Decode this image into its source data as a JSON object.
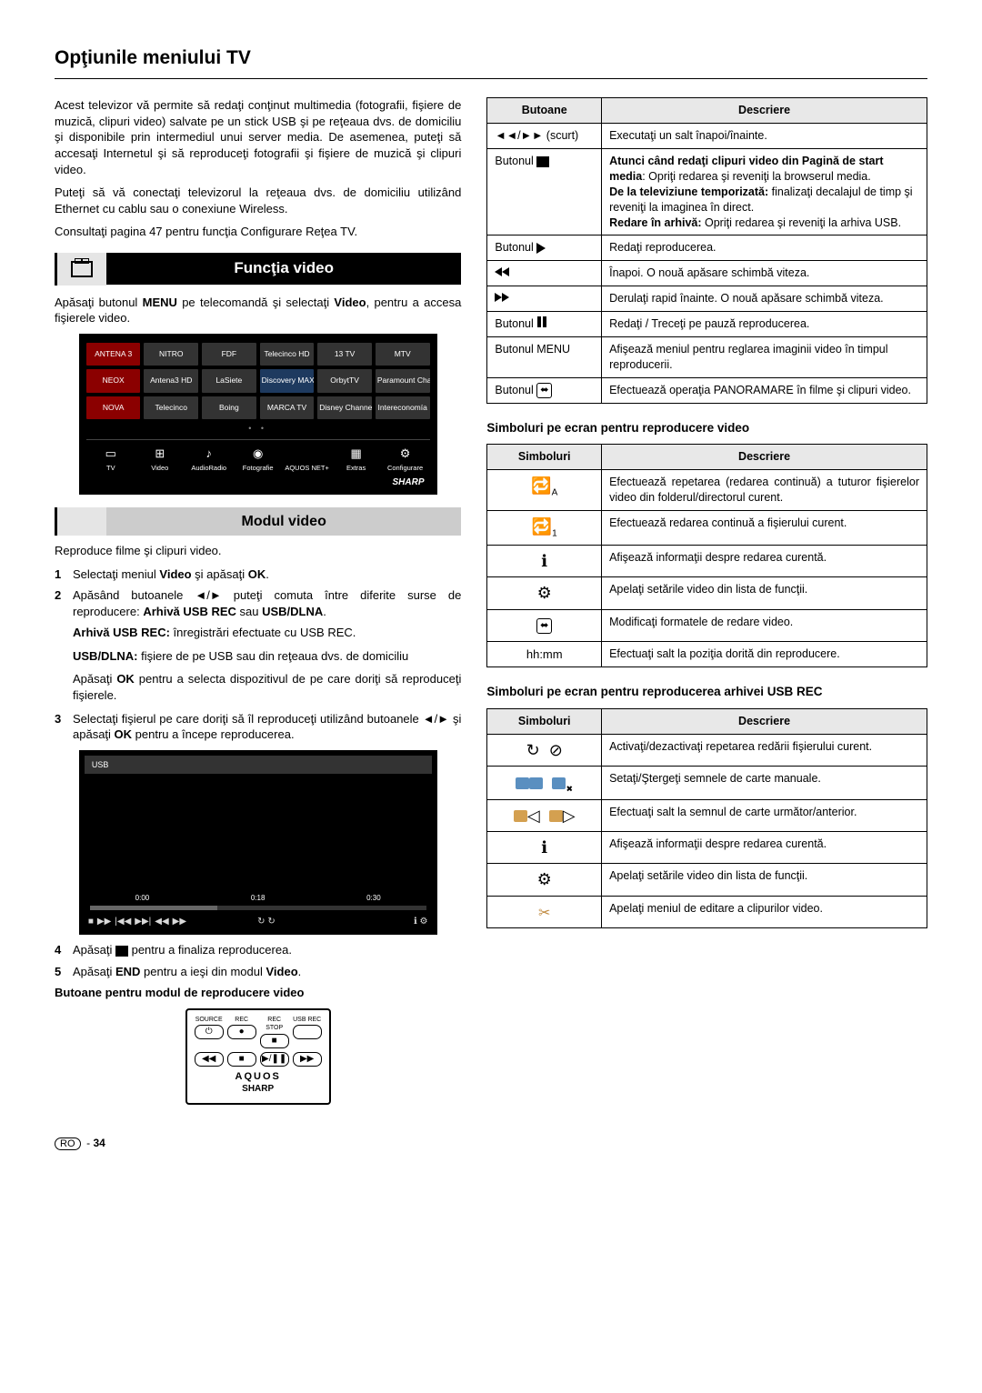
{
  "page_title": "Opţiunile meniului TV",
  "intro": {
    "p1": "Acest televizor vă permite să redaţi conţinut multimedia (fotografii, fişiere de muzică, clipuri video) salvate pe un stick USB şi pe reţeaua dvs. de domiciliu şi disponibile prin intermediul unui server media. De asemenea, puteţi să accesaţi Internetul şi să reproduceţi fotografii şi fişiere de muzică şi clipuri video.",
    "p2": "Puteţi să vă conectaţi televizorul la reţeaua dvs. de domiciliu utilizând Ethernet cu cablu sau o conexiune Wireless.",
    "p3": "Consultaţi pagina 47 pentru funcţia Configurare Reţea TV."
  },
  "section_video": "Funcţia video",
  "video_intro_pre": "Apăsaţi butonul ",
  "video_intro_bold1": "MENU",
  "video_intro_mid": " pe telecomandă şi selectaţi ",
  "video_intro_bold2": "Video",
  "video_intro_post": ", pentru a accesa fişierele video.",
  "tv_tiles": [
    [
      "ANTENA 3",
      "NITRO",
      "FDF",
      "Telecinco HD",
      "13 TV",
      "MTV"
    ],
    [
      "NEOX",
      "Antena3 HD",
      "LaSiete",
      "Discovery MAX",
      "OrbytTV",
      "Paramount Channel"
    ],
    [
      "NOVA",
      "Telecinco",
      "Boing",
      "MARCA TV",
      "Disney Channel",
      "Intereconomía"
    ]
  ],
  "tv_bottom": [
    "TV",
    "Video",
    "AudioRadio",
    "Fotografie",
    "AQUOS NET+",
    "Extras",
    "Configurare"
  ],
  "tv_sharp": "SHARP",
  "sub_modul": "Modul video",
  "modul_intro": "Reproduce filme şi clipuri video.",
  "steps": {
    "s1_pre": "Selectaţi meniul ",
    "s1_b1": "Video",
    "s1_mid": " şi apăsaţi ",
    "s1_b2": "OK",
    "s1_post": ".",
    "s2_pre": "Apăsând butoanele ◄/► puteţi comuta între diferite surse de reproducere: ",
    "s2_b1": "Arhivă USB REC",
    "s2_mid": " sau ",
    "s2_b2": "USB/DLNA",
    "s2_post": ".",
    "s2_l1_b": "Arhivă USB REC:",
    "s2_l1_t": " înregistrări efectuate cu USB REC.",
    "s2_l2_b": "USB/DLNA:",
    "s2_l2_t": " fişiere de pe USB sau din reţeaua dvs. de domiciliu",
    "s2_l3_pre": "Apăsaţi ",
    "s2_l3_b": "OK",
    "s2_l3_post": " pentru a selecta dispozitivul de pe care doriţi să reproduceţi fişierele.",
    "s3_pre": "Selectaţi fişierul pe care doriţi să îl reproduceţi utilizând butoanele ◄/► şi apăsaţi ",
    "s3_b": "OK",
    "s3_post": " pentru a începe reproducerea.",
    "s4_pre": "Apăsaţi ",
    "s4_post": " pentru a finaliza reproducerea.",
    "s5_pre": "Apăsaţi ",
    "s5_b": "END",
    "s5_mid": " pentru a ieşi din modul ",
    "s5_b2": "Video",
    "s5_post": "."
  },
  "pb_usb": "USB",
  "pb_times": [
    "0:00",
    "0:18",
    "0:30"
  ],
  "caption_buttons": "Butoane pentru modul de reproducere video",
  "remote_labels": [
    "SOURCE",
    "REC",
    "REC STOP",
    "USB REC"
  ],
  "remote_brand1": "AQUOS",
  "remote_brand2": "SHARP",
  "t1": {
    "h1": "Butoane",
    "h2": "Descriere",
    "rows": [
      {
        "c1_text": "◄◄/►► (scurt)",
        "c2": "Executaţi un salt înapoi/înainte."
      },
      {
        "c1_html": "Butonul <span class='blk'></span>",
        "c2_html": "<b>Atunci când redaţi clipuri video din Pagină de start media</b>: Opriţi redarea şi reveniţi la browserul media.<br><b>De la televiziune temporizată:</b> finalizaţi decalajul de timp şi reveniţi la imaginea în direct.<br><b>Redare în arhivă:</b> Opriţi redarea şi reveniţi la arhiva USB."
      },
      {
        "c1_html": "Butonul <span class='tri-r'></span>",
        "c2": "Redaţi reproducerea."
      },
      {
        "c1_html": "<span class='dtri-l'></span>",
        "c2": "Înapoi. O nouă apăsare schimbă viteza."
      },
      {
        "c1_html": "<span class='dtri-r'></span>",
        "c2": "Derulaţi rapid înainte. O nouă apăsare schimbă viteza."
      },
      {
        "c1_html": "Butonul <span class='pause'></span>",
        "c2": "Redaţi / Treceţi pe pauză reproducerea."
      },
      {
        "c1_text": "Butonul MENU",
        "c2": "Afişează meniul pentru reglarea imaginii video în timpul reproducerii."
      },
      {
        "c1_html": "Butonul <span class='box-icon'>⬌</span>",
        "c2": "Efectuează operaţia PANORAMARE în filme şi clipuri video."
      }
    ]
  },
  "subhead_t2": "Simboluri pe ecran pentru reproducere video",
  "t2": {
    "h1": "Simboluri",
    "h2": "Descriere",
    "rows": [
      {
        "icon": "🔁",
        "sub": "A",
        "c2": "Efectuează repetarea (redarea continuă) a tuturor fişierelor video din folderul/directorul curent."
      },
      {
        "icon": "🔁",
        "sub": "1",
        "c2": "Efectuează redarea continuă a fişierului curent."
      },
      {
        "icon": "ℹ",
        "c2": "Afişează informaţii despre redarea curentă."
      },
      {
        "icon": "⚙",
        "c2": "Apelaţi setările video din lista de funcţii."
      },
      {
        "icon": "⬌",
        "box": true,
        "c2": "Modificaţi formatele de redare video."
      },
      {
        "text": "hh:mm",
        "c2": "Efectuaţi salt la poziţia dorită din reproducere."
      }
    ]
  },
  "subhead_t3": "Simboluri pe ecran pentru reproducerea arhivei USB REC",
  "t3": {
    "h1": "Simboluri",
    "h2": "Descriere",
    "rows": [
      {
        "icon_html": "↻ &nbsp;⊘",
        "c2": "Activaţi/dezactivaţi repetarea redării fişierului curent."
      },
      {
        "icon_html": "<span class='bm-blue'></span><span class='bm-blue'></span>&nbsp;&nbsp;<span class='bm-blue'></span><sub style='font-size:9px'>✖</sub>",
        "c2": "Setaţi/Ştergeţi semnele de carte manuale."
      },
      {
        "icon_html": "<span class='bm-or'></span>◁&nbsp;&nbsp;<span class='bm-or'></span>▷",
        "c2": "Efectuaţi salt la semnul de carte următor/anterior."
      },
      {
        "icon": "ℹ",
        "c2": "Afişează informaţii despre redarea curentă."
      },
      {
        "icon": "⚙",
        "c2": "Apelaţi setările video din lista de funcţii."
      },
      {
        "icon_html": "<span class='scis'>✂</span>",
        "c2": "Apelaţi meniul de editare a clipurilor video."
      }
    ]
  },
  "footer_num": "34",
  "footer_ro": "RO"
}
